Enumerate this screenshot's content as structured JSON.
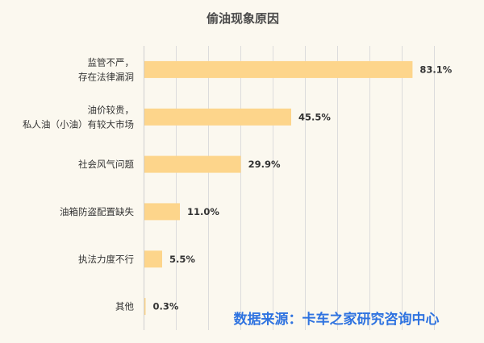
{
  "chart_data": {
    "type": "bar",
    "orientation": "horizontal",
    "title": "偷油现象原因",
    "categories": [
      [
        "监管不严，",
        "存在法律漏洞"
      ],
      [
        "油价较贵，",
        "私人油（小油）有较大市场"
      ],
      [
        "社会风气问题"
      ],
      [
        "油箱防盗配置缺失"
      ],
      [
        "执法力度不行"
      ],
      [
        "其他"
      ]
    ],
    "values": [
      83.1,
      45.5,
      29.9,
      11.0,
      5.5,
      0.3
    ],
    "value_labels": [
      "83.1%",
      "45.5%",
      "29.9%",
      "11.0%",
      "5.5%",
      "0.3%"
    ],
    "xlim": [
      0,
      90
    ],
    "grid": true,
    "bar_color": "#fdd58b",
    "source_note": "数据来源：卡车之家研究咨询中心"
  }
}
